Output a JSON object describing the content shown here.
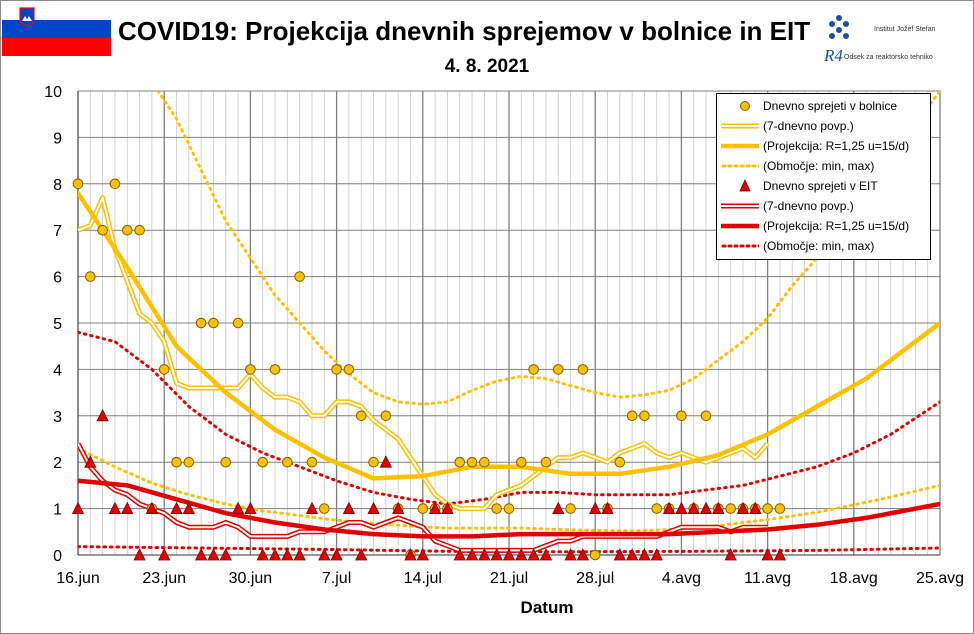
{
  "header": {
    "title": "COVID19: Projekcija dnevnih sprejemov v bolnice in EIT",
    "date": "4. 8. 2021",
    "logo_line1": "Institut Jožef Stefan",
    "logo_r4": "R4",
    "logo_line2": "Odsek za reaktorsko tehniko"
  },
  "chart_data": {
    "type": "line",
    "title": "COVID19: Projekcija dnevnih sprejemov v bolnice in EIT",
    "subtitle": "4. 8. 2021",
    "xlabel": "Datum",
    "ylabel": "",
    "x_tick_labels": [
      "16.jun",
      "23.jun",
      "30.jun",
      "7.jul",
      "14.jul",
      "21.jul",
      "28.jul",
      "4.avg",
      "11.avg",
      "18.avg",
      "25.avg"
    ],
    "y_tick_labels": [
      "0",
      "1",
      "2",
      "3",
      "4",
      "5",
      "6",
      "7",
      "8",
      "9",
      "10"
    ],
    "xlim_days": [
      0,
      70
    ],
    "ylim": [
      0,
      10
    ],
    "grid": true,
    "legend_position": "top-right",
    "colors": {
      "hospital": "#ffc000",
      "icu": "#e00000",
      "marker_edge": "#7f6000"
    },
    "legend": [
      "Dnevno sprejeti v bolnice",
      "(7-dnevno povp.)",
      "(Projekcija: R=1,25 u=15/d)",
      "(Območje: min, max)",
      "Dnevno sprejeti v EIT",
      "(7-dnevno povp.)",
      "(Projekcija: R=1,25 u=15/d)",
      "(Območje: min, max)"
    ],
    "series": [
      {
        "name": "Dnevno sprejeti v bolnice",
        "kind": "points-circle",
        "x": [
          0,
          1,
          2,
          3,
          4,
          5,
          6,
          7,
          8,
          9,
          10,
          11,
          12,
          13,
          14,
          15,
          16,
          17,
          18,
          19,
          20,
          21,
          22,
          23,
          24,
          25,
          26,
          27,
          28,
          29,
          30,
          31,
          32,
          33,
          34,
          35,
          36,
          37,
          38,
          39,
          40,
          41,
          42,
          43,
          44,
          45,
          46,
          47,
          48,
          49,
          50,
          51,
          52,
          53,
          54,
          55,
          56,
          57
        ],
        "y": [
          8,
          6,
          7,
          8,
          7,
          7,
          1,
          4,
          2,
          2,
          5,
          5,
          2,
          5,
          4,
          2,
          4,
          2,
          6,
          2,
          1,
          4,
          4,
          3,
          2,
          3,
          1,
          0,
          1,
          1,
          1,
          2,
          2,
          2,
          1,
          1,
          2,
          4,
          2,
          4,
          1,
          4,
          0,
          1,
          2,
          3,
          3,
          1,
          1,
          3,
          1,
          3,
          1,
          1,
          1,
          1,
          1,
          1
        ]
      },
      {
        "name": "(7-dnevno povp.)",
        "kind": "double-line",
        "color": "hospital",
        "x": [
          0,
          1,
          2,
          3,
          4,
          5,
          6,
          7,
          8,
          9,
          10,
          11,
          12,
          13,
          14,
          15,
          16,
          17,
          18,
          19,
          20,
          21,
          22,
          23,
          24,
          25,
          26,
          27,
          28,
          29,
          30,
          31,
          32,
          33,
          34,
          35,
          36,
          37,
          38,
          39,
          40,
          41,
          42,
          43,
          44,
          45,
          46,
          47,
          48,
          49,
          50,
          51,
          52,
          53,
          54,
          55,
          56
        ],
        "y": [
          7.0,
          7.1,
          7.7,
          6.6,
          5.9,
          5.2,
          5.0,
          4.6,
          3.7,
          3.6,
          3.6,
          3.6,
          3.6,
          3.6,
          3.9,
          3.6,
          3.4,
          3.4,
          3.3,
          3.0,
          3.0,
          3.3,
          3.3,
          3.2,
          2.9,
          2.7,
          2.5,
          2.1,
          1.7,
          1.3,
          1.1,
          1.0,
          1.0,
          1.0,
          1.3,
          1.4,
          1.5,
          1.7,
          1.9,
          2.1,
          2.1,
          2.2,
          2.1,
          2.0,
          2.2,
          2.3,
          2.4,
          2.2,
          2.1,
          2.2,
          2.1,
          2.0,
          2.1,
          2.2,
          2.3,
          2.1,
          2.4
        ]
      },
      {
        "name": "(Projekcija: R=1,25 u=15/d)",
        "kind": "thick-line",
        "color": "hospital",
        "x": [
          0,
          4,
          8,
          12,
          16,
          20,
          24,
          28,
          32,
          36,
          40,
          44,
          48,
          52,
          56,
          60,
          64,
          70
        ],
        "y": [
          7.8,
          6.2,
          4.5,
          3.5,
          2.7,
          2.1,
          1.65,
          1.7,
          1.9,
          1.9,
          1.75,
          1.75,
          1.9,
          2.15,
          2.6,
          3.2,
          3.8,
          5.0
        ]
      },
      {
        "name": "(Območje: min, max) – max",
        "kind": "dotted",
        "color": "hospital",
        "x": [
          6.5,
          8,
          10,
          12,
          14,
          16,
          18,
          20,
          22,
          24,
          26,
          28,
          30,
          32,
          34,
          36,
          38,
          40,
          42,
          44,
          46,
          48,
          50,
          52,
          54,
          56,
          58,
          60,
          62,
          64,
          66,
          68,
          70
        ],
        "y": [
          10,
          9.4,
          8.3,
          7.2,
          6.4,
          5.6,
          5.0,
          4.4,
          3.9,
          3.5,
          3.3,
          3.25,
          3.3,
          3.55,
          3.75,
          3.85,
          3.8,
          3.65,
          3.5,
          3.4,
          3.45,
          3.55,
          3.8,
          4.2,
          4.6,
          5.1,
          5.8,
          6.4,
          7.1,
          7.8,
          8.5,
          9.3,
          10.0
        ]
      },
      {
        "name": "(Območje: min, max) – min",
        "kind": "dotted",
        "color": "hospital",
        "x": [
          0,
          3,
          6,
          9,
          12,
          15,
          18,
          21,
          24,
          27,
          30,
          33,
          36,
          39,
          42,
          45,
          48,
          51,
          54,
          57,
          60,
          63,
          66,
          70
        ],
        "y": [
          2.3,
          1.9,
          1.55,
          1.3,
          1.1,
          0.95,
          0.85,
          0.75,
          0.68,
          0.62,
          0.58,
          0.58,
          0.58,
          0.55,
          0.53,
          0.52,
          0.55,
          0.6,
          0.7,
          0.8,
          0.92,
          1.08,
          1.25,
          1.5
        ]
      },
      {
        "name": "Dnevno sprejeti v EIT",
        "kind": "points-triangle",
        "x": [
          0,
          1,
          2,
          3,
          4,
          5,
          6,
          7,
          8,
          9,
          10,
          11,
          12,
          13,
          14,
          15,
          16,
          17,
          18,
          19,
          20,
          21,
          22,
          23,
          24,
          25,
          26,
          27,
          28,
          29,
          30,
          31,
          32,
          33,
          34,
          35,
          36,
          37,
          38,
          39,
          40,
          41,
          42,
          43,
          44,
          45,
          46,
          47,
          48,
          49,
          50,
          51,
          52,
          53,
          54,
          55,
          56,
          57
        ],
        "y": [
          1,
          2,
          3,
          1,
          1,
          0,
          1,
          0,
          1,
          1,
          0,
          0,
          0,
          1,
          1,
          0,
          0,
          0,
          0,
          1,
          0,
          0,
          1,
          0,
          1,
          2,
          1,
          0,
          0,
          1,
          1,
          0,
          0,
          0,
          0,
          0,
          0,
          0,
          0,
          1,
          0,
          0,
          1,
          1,
          0,
          0,
          0,
          0,
          1,
          1,
          1,
          1,
          1,
          0,
          1,
          1,
          0,
          0
        ]
      },
      {
        "name": "(7-dnevno povp.) EIT",
        "kind": "double-line",
        "color": "icu",
        "x": [
          0,
          1,
          2,
          3,
          4,
          5,
          6,
          7,
          8,
          9,
          10,
          11,
          12,
          13,
          14,
          15,
          16,
          17,
          18,
          19,
          20,
          21,
          22,
          23,
          24,
          25,
          26,
          27,
          28,
          29,
          30,
          31,
          32,
          33,
          34,
          35,
          36,
          37,
          38,
          39,
          40,
          41,
          42,
          43,
          44,
          45,
          46,
          47,
          48,
          49,
          50,
          51,
          52,
          53,
          54,
          55,
          56
        ],
        "y": [
          2.4,
          1.9,
          1.6,
          1.4,
          1.3,
          1.1,
          1.0,
          0.9,
          0.7,
          0.6,
          0.6,
          0.6,
          0.7,
          0.6,
          0.4,
          0.4,
          0.4,
          0.4,
          0.5,
          0.5,
          0.5,
          0.6,
          0.7,
          0.7,
          0.6,
          0.7,
          0.8,
          0.7,
          0.6,
          0.3,
          0.2,
          0.1,
          0.1,
          0.1,
          0.1,
          0.1,
          0.1,
          0.1,
          0.2,
          0.3,
          0.3,
          0.4,
          0.4,
          0.4,
          0.4,
          0.4,
          0.4,
          0.4,
          0.5,
          0.6,
          0.6,
          0.6,
          0.6,
          0.5,
          0.6,
          0.6,
          0.6
        ]
      },
      {
        "name": "(Projekcija: R=1,25 u=15/d) EIT",
        "kind": "thick-line",
        "color": "icu",
        "x": [
          0,
          4,
          8,
          12,
          16,
          20,
          24,
          28,
          32,
          36,
          40,
          44,
          48,
          52,
          56,
          60,
          64,
          70
        ],
        "y": [
          1.6,
          1.5,
          1.2,
          0.9,
          0.7,
          0.55,
          0.45,
          0.4,
          0.4,
          0.45,
          0.45,
          0.45,
          0.45,
          0.5,
          0.55,
          0.65,
          0.8,
          1.1
        ]
      },
      {
        "name": "(Območje: min, max) EIT – max",
        "kind": "dotted",
        "color": "icu",
        "x": [
          0,
          3,
          6,
          9,
          12,
          15,
          18,
          21,
          24,
          27,
          30,
          33,
          36,
          39,
          42,
          45,
          48,
          51,
          54,
          57,
          60,
          63,
          66,
          70
        ],
        "y": [
          4.8,
          4.6,
          4.0,
          3.2,
          2.6,
          2.2,
          1.9,
          1.6,
          1.35,
          1.2,
          1.1,
          1.2,
          1.35,
          1.35,
          1.3,
          1.3,
          1.3,
          1.4,
          1.5,
          1.7,
          1.9,
          2.2,
          2.6,
          3.3
        ]
      },
      {
        "name": "(Območje: min, max) EIT – min",
        "kind": "dotted",
        "color": "icu",
        "x": [
          0,
          10,
          20,
          30,
          40,
          50,
          60,
          70
        ],
        "y": [
          0.18,
          0.15,
          0.12,
          0.08,
          0.07,
          0.08,
          0.1,
          0.15
        ]
      }
    ]
  }
}
